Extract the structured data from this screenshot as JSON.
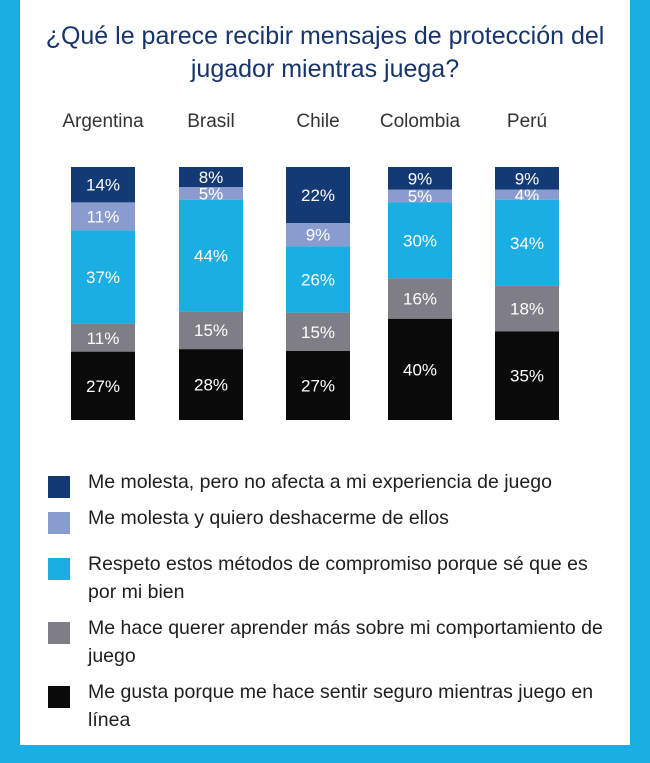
{
  "title": "¿Qué le parece recibir mensajes de protección del jugador mientras juega?",
  "chart_data": {
    "type": "bar",
    "stacked": true,
    "percent": true,
    "categories": [
      "Argentina",
      "Brasil",
      "Chile",
      "Colombia",
      "Perú"
    ],
    "series": [
      {
        "name": "Me molesta, pero no afecta a mi experiencia de juego",
        "color": "#143a75",
        "label_color": "#ffffff",
        "values": [
          14,
          8,
          22,
          9,
          9
        ]
      },
      {
        "name": "Me molesta y quiero deshacerme de ellos",
        "color": "#8a9ccf",
        "label_color": "#ffffff",
        "values": [
          11,
          5,
          9,
          5,
          4
        ]
      },
      {
        "name": "Respeto estos métodos de compromiso porque sé que es por mi bien",
        "color": "#1aaee3",
        "label_color": "#ffffff",
        "values": [
          37,
          44,
          26,
          30,
          34
        ]
      },
      {
        "name": "Me hace querer aprender más sobre mi comportamiento de juego",
        "color": "#7f7d85",
        "label_color": "#ffffff",
        "values": [
          11,
          15,
          15,
          16,
          18
        ]
      },
      {
        "name": "Me gusta porque me hace sentir seguro mientras juego en línea",
        "color": "#0a0a0a",
        "label_color": "#ffffff",
        "values": [
          27,
          28,
          27,
          40,
          35
        ]
      }
    ],
    "ylim": [
      0,
      100
    ],
    "legend": "bottom"
  }
}
